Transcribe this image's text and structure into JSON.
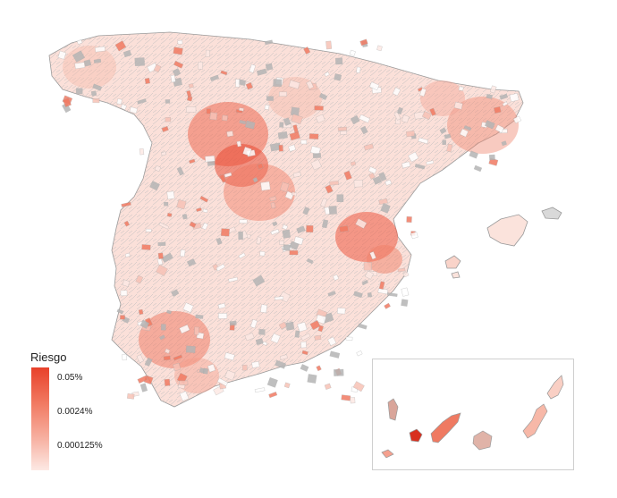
{
  "legend": {
    "title": "Riesgo",
    "labels": [
      "0.05%",
      "0.0024%",
      "0.000125%"
    ]
  },
  "colors": {
    "high": "#e8412a",
    "mid": "#f17a62",
    "low": "#f7c2b6",
    "verylow": "#fde9e4",
    "nodata": "#b5b5b5",
    "border": "#9a9a9a",
    "inset_border": "#cfcfcf"
  }
}
